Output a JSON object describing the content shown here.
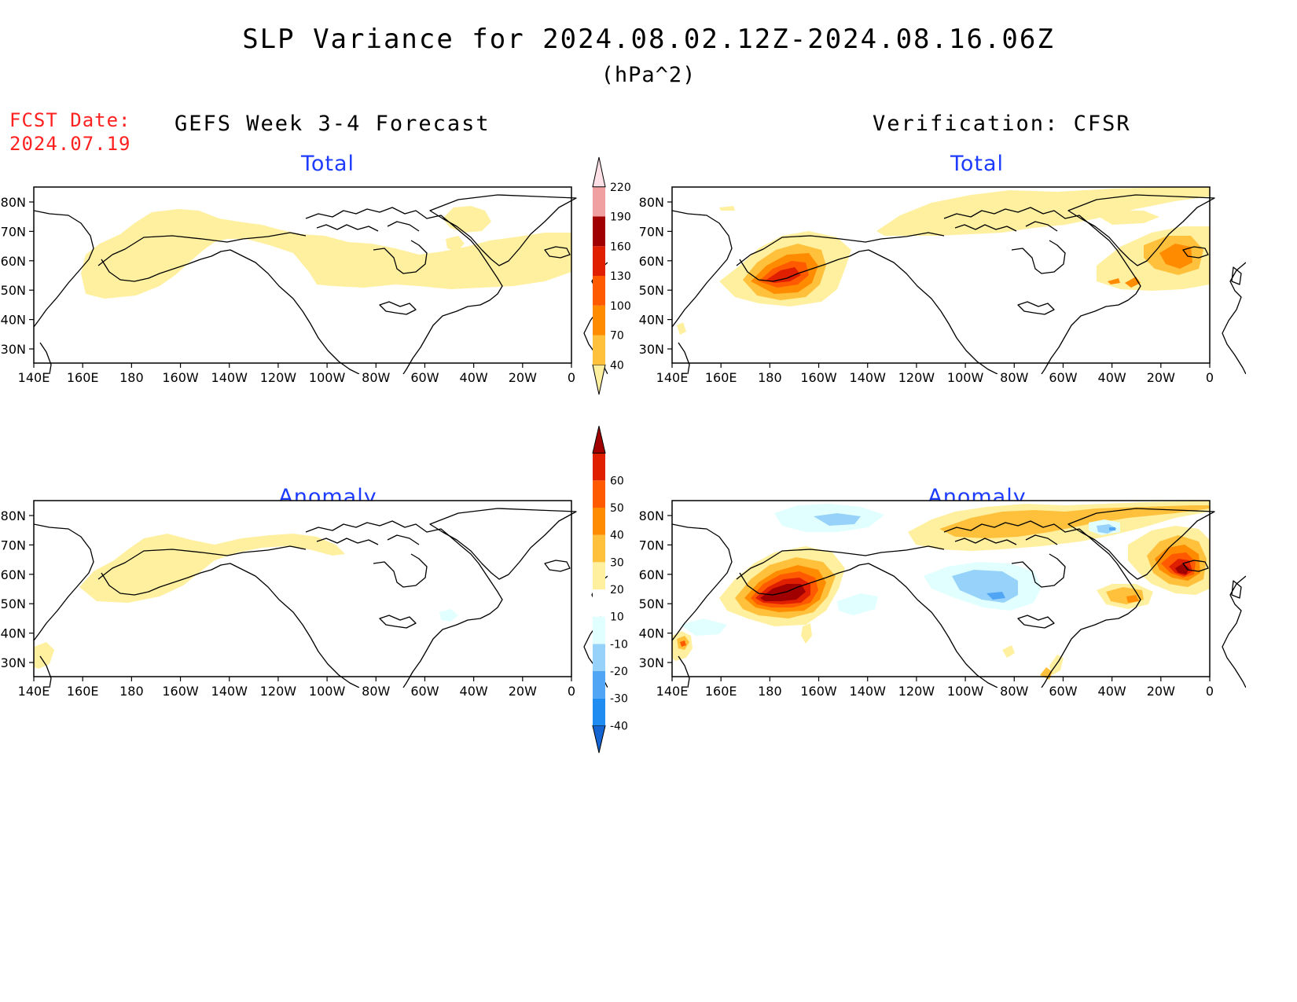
{
  "title": "SLP Variance for 2024.08.02.12Z-2024.08.16.06Z",
  "units": "(hPa^2)",
  "fcst_date": {
    "label": "FCST Date:",
    "value": "2024.07.19"
  },
  "columns": {
    "left": "GEFS Week 3-4 Forecast",
    "right": "Verification: CFSR"
  },
  "panel_titles": {
    "total": "Total",
    "anomaly": "Anomaly"
  },
  "lon_labels": [
    "140E",
    "160E",
    "180",
    "160W",
    "140W",
    "120W",
    "100W",
    "80W",
    "60W",
    "40W",
    "20W",
    "0"
  ],
  "lat_labels": [
    "30N",
    "40N",
    "50N",
    "60N",
    "70N",
    "80N"
  ],
  "colorbars": {
    "total": {
      "levels": [
        "40",
        "70",
        "100",
        "130",
        "160",
        "190",
        "220"
      ],
      "colors": [
        "#fff0a0",
        "#ffc13c",
        "#ff8c00",
        "#ff5a00",
        "#e01e00",
        "#a00000",
        "#f0a0a0",
        "#ffe0e6"
      ]
    },
    "anomaly": {
      "levels": [
        "-40",
        "-30",
        "-20",
        "-10",
        "10",
        "20",
        "30",
        "40",
        "50",
        "60"
      ],
      "colors": [
        "#1464d2",
        "#1e8cf0",
        "#50a5f5",
        "#96d2fa",
        "#e1ffff",
        "#ffffff",
        "#fff0a0",
        "#ffc13c",
        "#ff8c00",
        "#ff5a00",
        "#e01e00",
        "#a00000"
      ]
    }
  }
}
